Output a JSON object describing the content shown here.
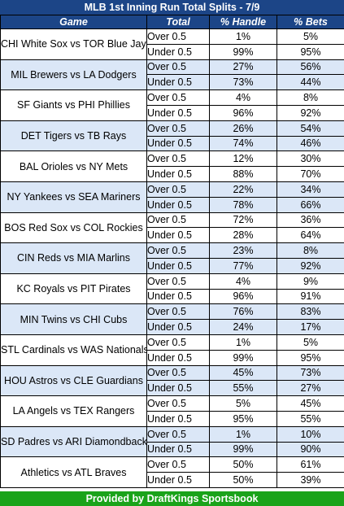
{
  "title": "MLB 1st Inning Run Total Splits - 7/9",
  "headers": {
    "game": "Game",
    "total": "Total",
    "handle": "% Handle",
    "bets": "% Bets"
  },
  "games": [
    {
      "name": "CHI White Sox vs TOR Blue Jays",
      "over": {
        "label": "Over 0.5",
        "handle": "1%",
        "bets": "5%"
      },
      "under": {
        "label": "Under 0.5",
        "handle": "99%",
        "bets": "95%"
      }
    },
    {
      "name": "MIL Brewers vs LA Dodgers",
      "over": {
        "label": "Over 0.5",
        "handle": "27%",
        "bets": "56%"
      },
      "under": {
        "label": "Under 0.5",
        "handle": "73%",
        "bets": "44%"
      }
    },
    {
      "name": "SF Giants vs PHI Phillies",
      "over": {
        "label": "Over 0.5",
        "handle": "4%",
        "bets": "8%"
      },
      "under": {
        "label": "Under 0.5",
        "handle": "96%",
        "bets": "92%"
      }
    },
    {
      "name": "DET Tigers vs TB Rays",
      "over": {
        "label": "Over 0.5",
        "handle": "26%",
        "bets": "54%"
      },
      "under": {
        "label": "Under 0.5",
        "handle": "74%",
        "bets": "46%"
      }
    },
    {
      "name": "BAL Orioles vs NY Mets",
      "over": {
        "label": "Over 0.5",
        "handle": "12%",
        "bets": "30%"
      },
      "under": {
        "label": "Under 0.5",
        "handle": "88%",
        "bets": "70%"
      }
    },
    {
      "name": "NY Yankees vs SEA Mariners",
      "over": {
        "label": "Over 0.5",
        "handle": "22%",
        "bets": "34%"
      },
      "under": {
        "label": "Under 0.5",
        "handle": "78%",
        "bets": "66%"
      }
    },
    {
      "name": "BOS Red Sox vs COL Rockies",
      "over": {
        "label": "Over 0.5",
        "handle": "72%",
        "bets": "36%"
      },
      "under": {
        "label": "Under 0.5",
        "handle": "28%",
        "bets": "64%"
      }
    },
    {
      "name": "CIN Reds vs MIA Marlins",
      "over": {
        "label": "Over 0.5",
        "handle": "23%",
        "bets": "8%"
      },
      "under": {
        "label": "Under 0.5",
        "handle": "77%",
        "bets": "92%"
      }
    },
    {
      "name": "KC Royals vs PIT Pirates",
      "over": {
        "label": "Over 0.5",
        "handle": "4%",
        "bets": "9%"
      },
      "under": {
        "label": "Under 0.5",
        "handle": "96%",
        "bets": "91%"
      }
    },
    {
      "name": "MIN Twins vs CHI Cubs",
      "over": {
        "label": "Over 0.5",
        "handle": "76%",
        "bets": "83%"
      },
      "under": {
        "label": "Under 0.5",
        "handle": "24%",
        "bets": "17%"
      }
    },
    {
      "name": "STL Cardinals vs WAS Nationals",
      "over": {
        "label": "Over 0.5",
        "handle": "1%",
        "bets": "5%"
      },
      "under": {
        "label": "Under 0.5",
        "handle": "99%",
        "bets": "95%"
      }
    },
    {
      "name": "HOU Astros vs CLE Guardians",
      "over": {
        "label": "Over 0.5",
        "handle": "45%",
        "bets": "73%"
      },
      "under": {
        "label": "Under 0.5",
        "handle": "55%",
        "bets": "27%"
      }
    },
    {
      "name": "LA Angels vs TEX Rangers",
      "over": {
        "label": "Over 0.5",
        "handle": "5%",
        "bets": "45%"
      },
      "under": {
        "label": "Under 0.5",
        "handle": "95%",
        "bets": "55%"
      }
    },
    {
      "name": "SD Padres vs ARI Diamondbacks",
      "over": {
        "label": "Over 0.5",
        "handle": "1%",
        "bets": "10%"
      },
      "under": {
        "label": "Under 0.5",
        "handle": "99%",
        "bets": "90%"
      }
    },
    {
      "name": "Athletics vs ATL Braves",
      "over": {
        "label": "Over 0.5",
        "handle": "50%",
        "bets": "61%"
      },
      "under": {
        "label": "Under 0.5",
        "handle": "50%",
        "bets": "39%"
      }
    }
  ],
  "footer": "Provided by DraftKings Sportsbook",
  "colors": {
    "header": "#1c4587",
    "stripe": "#dbe7f7",
    "footer": "#1aa31a"
  }
}
